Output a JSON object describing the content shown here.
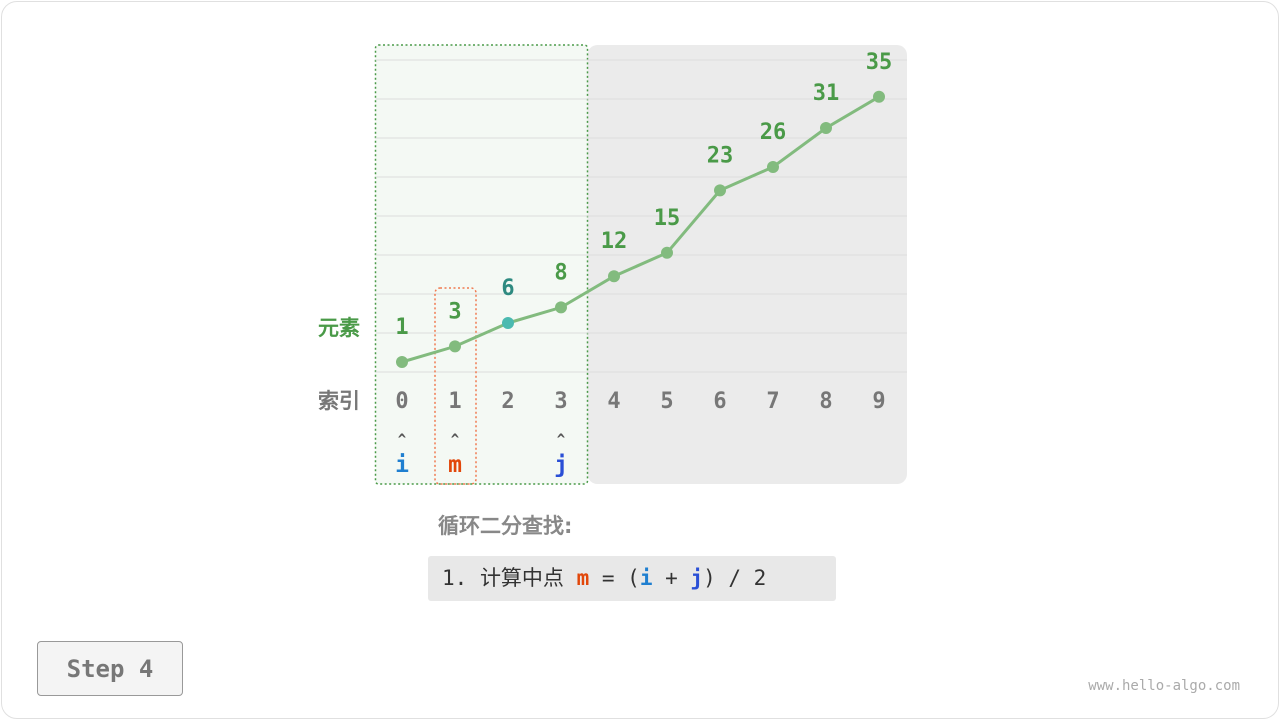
{
  "diagram": {
    "row_labels": {
      "element": "元素",
      "index": "索引"
    },
    "values": [
      1,
      3,
      6,
      8,
      12,
      15,
      23,
      26,
      31,
      35
    ],
    "indices": [
      "0",
      "1",
      "2",
      "3",
      "4",
      "5",
      "6",
      "7",
      "8",
      "9"
    ],
    "pointers": [
      {
        "label": "i",
        "index": 0,
        "color": "#1f7fd0"
      },
      {
        "label": "m",
        "index": 1,
        "color": "#e2470a"
      },
      {
        "label": "j",
        "index": 3,
        "color": "#2a4fd6"
      }
    ],
    "pointer_arrow": "^",
    "search_range": [
      0,
      3
    ],
    "excluded_range": [
      4,
      9
    ],
    "highlight_index": 2,
    "colors": {
      "line": "#82bb7e",
      "value_text": "#4a9a48",
      "highlight": "#4bbab0",
      "highlight_text": "#2e8a80",
      "index_text": "#777777",
      "excluded_bg": "#ebebeb",
      "range_bg": "#f4f9f4"
    }
  },
  "caption": "循环二分查找:",
  "code": {
    "prefix": "1. ",
    "text": "计算中点",
    "m": "m",
    "eq": " = (",
    "i": "i",
    "plus": " + ",
    "j": "j",
    "tail": ") / 2"
  },
  "step_button": "Step 4",
  "watermark": "www.hello-algo.com"
}
